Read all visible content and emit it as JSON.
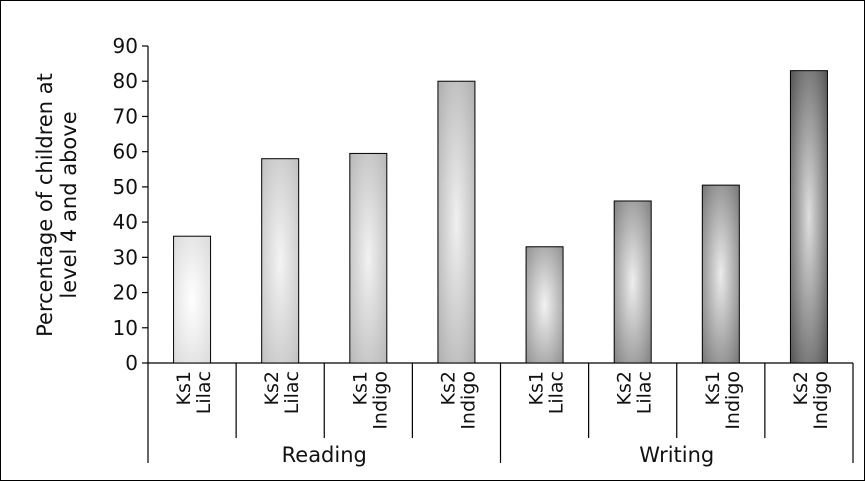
{
  "chart_data": {
    "type": "bar",
    "title": "",
    "xlabel": "",
    "ylabel": "Percentage of children at level 4 and above",
    "ylabel_lines": [
      "Percentage of children at",
      "level 4 and above"
    ],
    "ylim": [
      0,
      90
    ],
    "yticks": [
      0,
      10,
      20,
      30,
      40,
      50,
      60,
      70,
      80,
      90
    ],
    "grid": false,
    "legend": "none",
    "groups": [
      {
        "name": "Reading",
        "bars": [
          {
            "line1": "Ks1",
            "line2": "Lilac",
            "value": 36,
            "color_dark": "#d8d8d8",
            "color_light": "#ffffff"
          },
          {
            "line1": "Ks2",
            "line2": "Lilac",
            "value": 58,
            "color_dark": "#bdbdbd",
            "color_light": "#f4f4f4"
          },
          {
            "line1": "Ks1",
            "line2": "Indigo",
            "value": 59.5,
            "color_dark": "#b3b3b3",
            "color_light": "#f2f2f2"
          },
          {
            "line1": "Ks2",
            "line2": "Indigo",
            "value": 80,
            "color_dark": "#a9a9a9",
            "color_light": "#f0f0f0"
          }
        ]
      },
      {
        "name": "Writing",
        "bars": [
          {
            "line1": "Ks1",
            "line2": "Lilac",
            "value": 33,
            "color_dark": "#8a8a8a",
            "color_light": "#f2f2f2"
          },
          {
            "line1": "Ks2",
            "line2": "Lilac",
            "value": 46,
            "color_dark": "#7a7a7a",
            "color_light": "#eeeeee"
          },
          {
            "line1": "Ks1",
            "line2": "Indigo",
            "value": 50.5,
            "color_dark": "#6e6e6e",
            "color_light": "#ebebeb"
          },
          {
            "line1": "Ks2",
            "line2": "Indigo",
            "value": 83,
            "color_dark": "#4a4a4a",
            "color_light": "#dedede"
          }
        ]
      }
    ]
  }
}
